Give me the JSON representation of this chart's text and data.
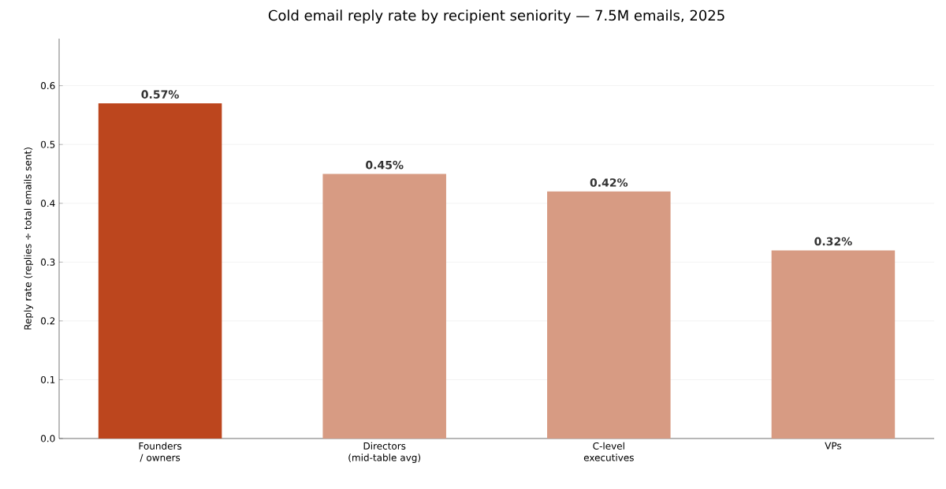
{
  "chart_data": {
    "type": "bar",
    "title": "Cold email reply rate by recipient seniority — 7.5M emails, 2025",
    "ylabel": "Reply rate (replies ÷ total emails sent)",
    "categories": [
      "Founders / owners",
      "Directors (mid-table avg)",
      "C-level executives",
      "VPs"
    ],
    "values": [
      0.57,
      0.45,
      0.42,
      0.32
    ],
    "colors": [
      "#bc461e",
      "#d79b83",
      "#d79b83",
      "#d79b83"
    ],
    "value_labels": [
      "0.57%",
      "0.45%",
      "0.42%",
      "0.32%"
    ],
    "ylim": [
      0,
      0.68
    ],
    "yticks": [
      {
        "value": 0,
        "label": "0.0"
      },
      0.1,
      0.2,
      0.3,
      0.4,
      0.5,
      0.6
    ],
    "grid": "y"
  }
}
